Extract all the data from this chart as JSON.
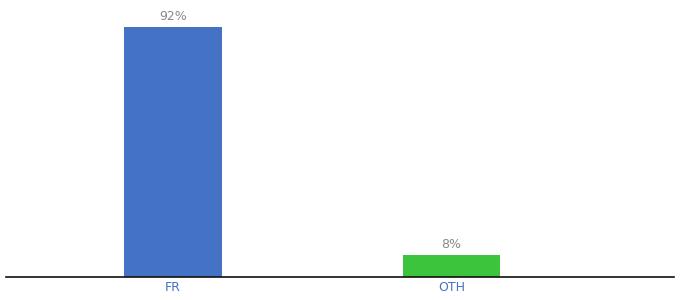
{
  "categories": [
    "FR",
    "OTH"
  ],
  "values": [
    92,
    8
  ],
  "bar_colors": [
    "#4472c4",
    "#3dc43d"
  ],
  "value_labels": [
    "92%",
    "8%"
  ],
  "background_color": "#ffffff",
  "ylim": [
    0,
    100
  ],
  "bar_width": 0.35,
  "label_fontsize": 9,
  "tick_fontsize": 9,
  "label_color": "#888888",
  "tick_color": "#4472c4"
}
